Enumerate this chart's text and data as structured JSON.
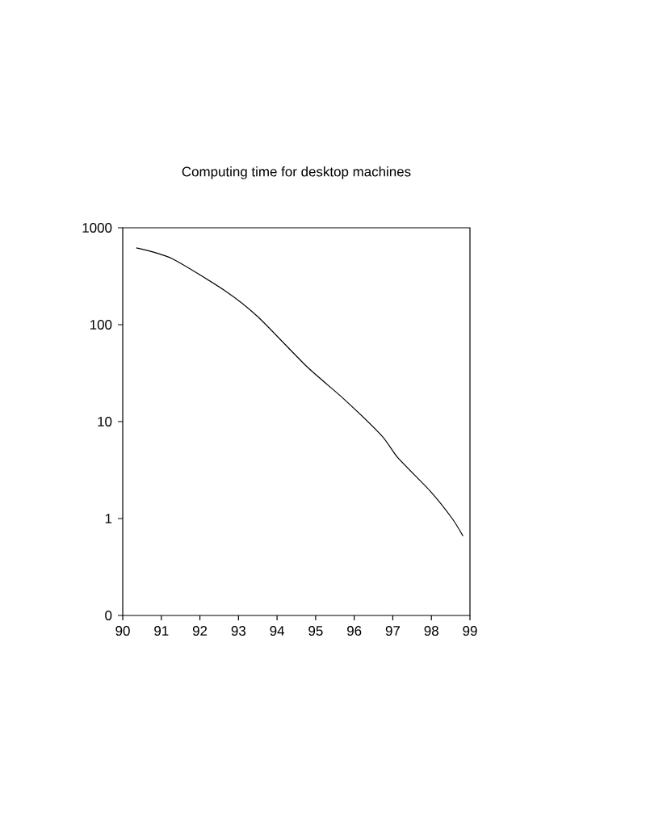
{
  "chart_data": {
    "type": "line",
    "title": "Computing time for desktop machines",
    "x": [
      90.35,
      91.28,
      92.68,
      93.51,
      94.77,
      95.74,
      96.72,
      97.14,
      97.98,
      98.54,
      98.82
    ],
    "values": [
      620,
      480,
      220,
      120,
      37,
      17,
      7.1,
      4.2,
      1.9,
      1.0,
      0.66
    ],
    "color": "#000000",
    "log": "y",
    "marker": "none",
    "line_style": "solid",
    "xlim": [
      90,
      99
    ],
    "ylim": [
      0.1,
      1000
    ],
    "xticks": [
      90,
      91,
      92,
      93,
      94,
      95,
      96,
      97,
      98,
      99
    ],
    "yticks": [
      {
        "value": 0.1,
        "label": "0"
      },
      1,
      10,
      100,
      1000
    ]
  }
}
